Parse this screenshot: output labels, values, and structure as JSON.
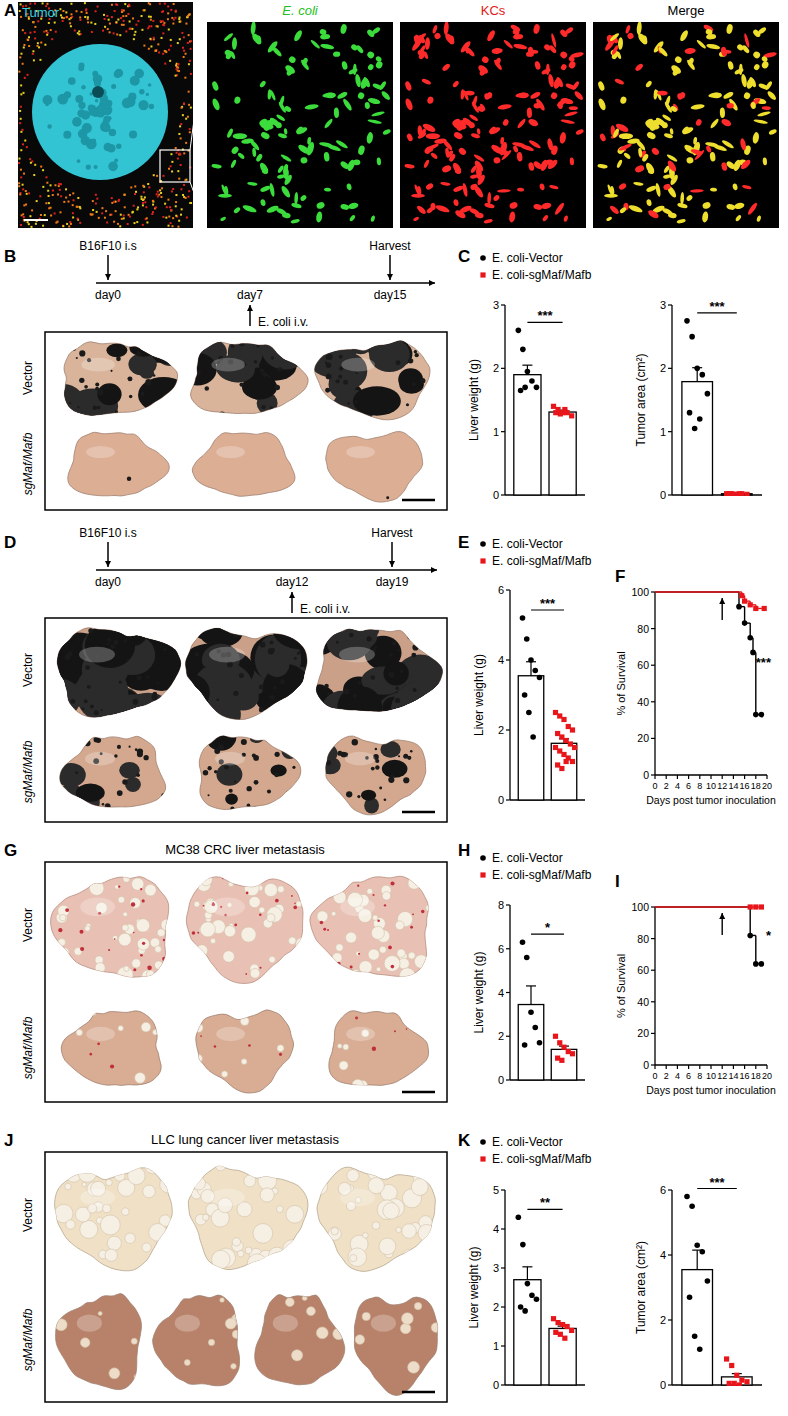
{
  "figure": {
    "panel_labels": [
      "A",
      "B",
      "C",
      "D",
      "E",
      "F",
      "G",
      "H",
      "I",
      "J",
      "K"
    ],
    "A": {
      "tumor_label": "Tumor",
      "channels": [
        "E. coli",
        "KCs",
        "Merge"
      ]
    },
    "B": {
      "timeline": {
        "top": [
          "B16F10 i.s",
          "Harvest"
        ],
        "days": [
          "day0",
          "day7",
          "day15"
        ],
        "treatment": "E. coli i.v."
      },
      "rows": [
        "Vector",
        "sgMaf/Mafb"
      ]
    },
    "D": {
      "timeline": {
        "top": [
          "B16F10 i.s",
          "Harvest"
        ],
        "days": [
          "day0",
          "day12",
          "day19"
        ],
        "treatment": "E. coli i.v."
      },
      "rows": [
        "Vector",
        "sgMaf/Mafb"
      ]
    },
    "G": {
      "title": "MC38 CRC liver metastasis",
      "rows": [
        "Vector",
        "sgMaf/Mafb"
      ]
    },
    "J": {
      "title": "LLC lung cancer liver metastasis",
      "rows": [
        "Vector",
        "sgMaf/Mafb"
      ]
    }
  },
  "chart_data": [
    {
      "type": "bar",
      "legend": "top",
      "series": [
        {
          "name": "E. coli-Vector",
          "color": "#000000",
          "marker": "circle"
        },
        {
          "name": "E. coli-sgMaf/Mafb",
          "color": "#e8161b",
          "marker": "square"
        }
      ],
      "subplots": [
        {
          "ylabel": "Liver weight (g)",
          "ylim": [
            0,
            3
          ],
          "yticks": [
            0,
            1,
            2,
            3
          ],
          "values": [
            1.9,
            1.31
          ],
          "errors": [
            0.15,
            0.03
          ],
          "points": [
            [
              2.6,
              2.3,
              1.95,
              1.8,
              1.7,
              1.65,
              1.7
            ],
            [
              1.4,
              1.35,
              1.3,
              1.3,
              1.25,
              1.3,
              1.28,
              1.35
            ]
          ],
          "significance": "***"
        },
        {
          "ylabel": "Tumor area (cm²)",
          "ylim": [
            0,
            3
          ],
          "yticks": [
            0,
            1,
            2,
            3
          ],
          "values": [
            1.79,
            0.02
          ],
          "errors": [
            0.22,
            0.005
          ],
          "points": [
            [
              2.75,
              2.5,
              2.0,
              1.9,
              1.6,
              1.3,
              1.05,
              1.2
            ],
            [
              0.02,
              0.02,
              0.01,
              0.02,
              0.01,
              0.02,
              0.01,
              0.02
            ]
          ],
          "significance": "***"
        }
      ]
    },
    {
      "type": "bar",
      "legend": "top",
      "series": [
        {
          "name": "E. coli-Vector",
          "color": "#000000",
          "marker": "circle"
        },
        {
          "name": "E. coli-sgMaf/Mafb",
          "color": "#e8161b",
          "marker": "square"
        }
      ],
      "subplots": [
        {
          "ylabel": "Liver weight (g)",
          "ylim": [
            0,
            6
          ],
          "yticks": [
            0,
            2,
            4,
            6
          ],
          "values": [
            3.55,
            1.62
          ],
          "errors": [
            0.4,
            0.13
          ],
          "points": [
            [
              5.2,
              4.6,
              4.0,
              3.7,
              3.5,
              3.0,
              2.5,
              1.8
            ],
            [
              2.5,
              2.4,
              2.3,
              2.1,
              2.0,
              1.9,
              1.8,
              1.7,
              1.6,
              1.5,
              1.5,
              1.4,
              1.3,
              1.2,
              1.1,
              1.0,
              0.9,
              1.1
            ]
          ],
          "significance": "***"
        }
      ]
    },
    {
      "type": "line",
      "line_style": "step",
      "xlabel": "Days post tumor inoculation",
      "ylabel": "% of Survival",
      "xlim": [
        0,
        20
      ],
      "ylim": [
        0,
        100
      ],
      "xticks": [
        0,
        2,
        4,
        6,
        8,
        10,
        12,
        14,
        16,
        18,
        20
      ],
      "yticks": [
        0,
        20,
        40,
        60,
        80,
        100
      ],
      "arrow_day": 12,
      "significance": "***",
      "series": [
        {
          "color": "#000000",
          "marker": "circle",
          "x": [
            0,
            15,
            16,
            17,
            17.5,
            18,
            19
          ],
          "values": [
            100,
            92,
            83,
            75,
            67,
            33,
            33
          ]
        },
        {
          "color": "#e8161b",
          "marker": "square",
          "x": [
            0,
            15.5,
            16,
            17,
            18,
            19.5
          ],
          "values": [
            100,
            98,
            95,
            93,
            91,
            91
          ]
        }
      ]
    },
    {
      "type": "bar",
      "legend": "top",
      "series": [
        {
          "name": "E. coli-Vector",
          "color": "#000000",
          "marker": "circle"
        },
        {
          "name": "E. coli-sgMaf/Mafb",
          "color": "#e8161b",
          "marker": "square"
        }
      ],
      "subplots": [
        {
          "ylabel": "Liver weight (g)",
          "ylim": [
            0,
            8
          ],
          "yticks": [
            0,
            2,
            4,
            6,
            8
          ],
          "values": [
            3.45,
            1.4
          ],
          "errors": [
            0.85,
            0.15
          ],
          "points": [
            [
              6.3,
              5.6,
              3.1,
              2.4,
              1.7,
              1.6
            ],
            [
              2.0,
              1.7,
              1.5,
              1.3,
              1.2,
              1.0,
              0.9
            ]
          ],
          "significance": "*"
        }
      ]
    },
    {
      "type": "line",
      "line_style": "step",
      "xlabel": "Days post tumor inoculation",
      "ylabel": "% of Survival",
      "xlim": [
        0,
        20
      ],
      "ylim": [
        0,
        100
      ],
      "xticks": [
        0,
        2,
        4,
        6,
        8,
        10,
        12,
        14,
        16,
        18,
        20
      ],
      "yticks": [
        0,
        20,
        40,
        60,
        80,
        100
      ],
      "arrow_day": 12,
      "significance": "*",
      "series": [
        {
          "color": "#000000",
          "marker": "circle",
          "x": [
            0,
            17,
            18,
            19
          ],
          "values": [
            100,
            82,
            64,
            64
          ]
        },
        {
          "color": "#e8161b",
          "marker": "square",
          "x": [
            0,
            17,
            18,
            19
          ],
          "values": [
            100,
            100,
            100,
            100
          ]
        }
      ]
    },
    {
      "type": "bar",
      "legend": "top",
      "series": [
        {
          "name": "E. coli-Vector",
          "color": "#000000",
          "marker": "circle"
        },
        {
          "name": "E. coli-sgMaf/Mafb",
          "color": "#e8161b",
          "marker": "square"
        }
      ],
      "subplots": [
        {
          "ylabel": "Liver weight (g)",
          "ylim": [
            0,
            5
          ],
          "yticks": [
            0,
            1,
            2,
            3,
            4,
            5
          ],
          "values": [
            2.7,
            1.45
          ],
          "errors": [
            0.33,
            0.06
          ],
          "points": [
            [
              4.3,
              3.6,
              2.6,
              2.3,
              2.2,
              2.0,
              1.9
            ],
            [
              1.7,
              1.6,
              1.55,
              1.5,
              1.4,
              1.35,
              1.3,
              1.2
            ]
          ],
          "significance": "**"
        },
        {
          "ylabel": "Tumor area (cm²)",
          "ylim": [
            0,
            6
          ],
          "yticks": [
            0,
            2,
            4,
            6
          ],
          "values": [
            3.55,
            0.25
          ],
          "errors": [
            0.6,
            0.1
          ],
          "points": [
            [
              5.8,
              5.5,
              4.3,
              4.1,
              3.2,
              2.7,
              1.5,
              1.1
            ],
            [
              0.8,
              0.6,
              0.3,
              0.15,
              0.1,
              0.05,
              0.05,
              0.0
            ]
          ],
          "significance": "***"
        }
      ]
    }
  ]
}
